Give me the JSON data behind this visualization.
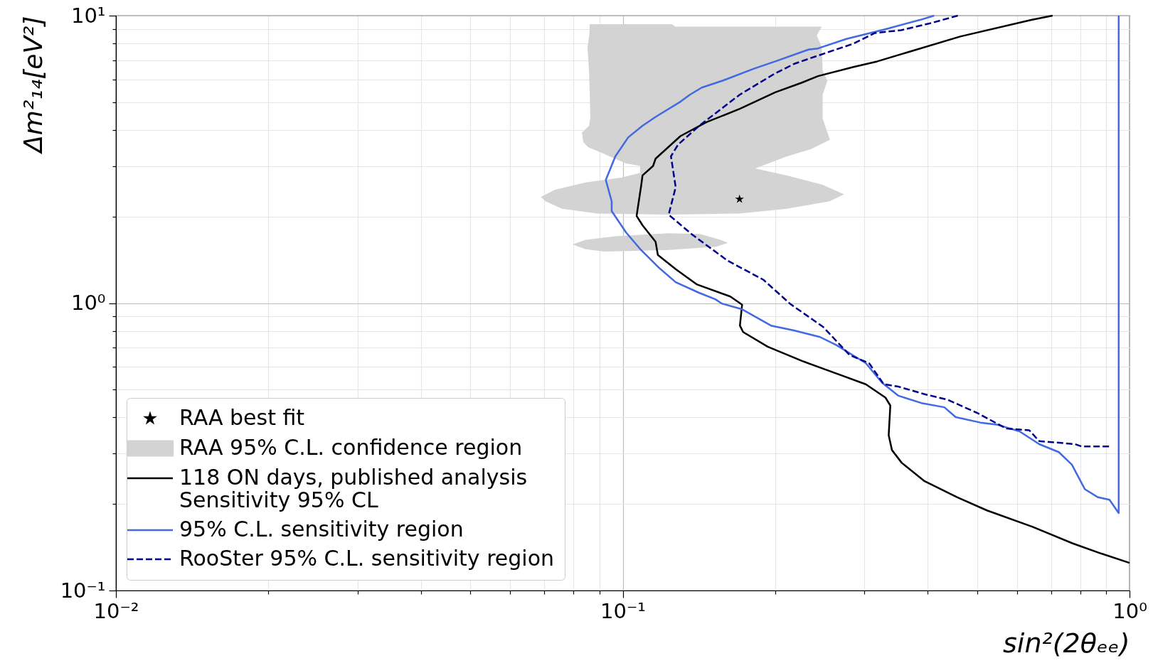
{
  "chart_data": {
    "type": "line",
    "xlabel": "sin²(2θₑₑ)",
    "ylabel": "Δm²₁₄[eV²]",
    "log": "xy",
    "grid": true,
    "legend": "bottom left",
    "xlim": [
      0.01,
      1
    ],
    "ylim": [
      0.1,
      10
    ],
    "xticks": [
      {
        "value": 0.01,
        "label": "10⁻²"
      },
      {
        "value": 0.02,
        "label": null
      },
      {
        "value": 0.03,
        "label": null
      },
      {
        "value": 0.04,
        "label": null
      },
      {
        "value": 0.05,
        "label": null
      },
      {
        "value": 0.06,
        "label": null
      },
      {
        "value": 0.07,
        "label": null
      },
      {
        "value": 0.08,
        "label": null
      },
      {
        "value": 0.09,
        "label": null
      },
      {
        "value": 0.1,
        "label": "10⁻¹"
      },
      {
        "value": 0.2,
        "label": null
      },
      {
        "value": 0.3,
        "label": null
      },
      {
        "value": 0.4,
        "label": null
      },
      {
        "value": 0.5,
        "label": null
      },
      {
        "value": 0.6,
        "label": null
      },
      {
        "value": 0.7,
        "label": null
      },
      {
        "value": 0.8,
        "label": null
      },
      {
        "value": 0.9,
        "label": null
      },
      {
        "value": 1,
        "label": "10⁰"
      }
    ],
    "yticks": [
      {
        "value": 0.1,
        "label": "10⁻¹"
      },
      {
        "value": 0.2,
        "label": null
      },
      {
        "value": 0.3,
        "label": null
      },
      {
        "value": 0.4,
        "label": null
      },
      {
        "value": 0.5,
        "label": null
      },
      {
        "value": 0.6,
        "label": null
      },
      {
        "value": 0.7,
        "label": null
      },
      {
        "value": 0.8,
        "label": null
      },
      {
        "value": 0.9,
        "label": null
      },
      {
        "value": 1,
        "label": "10⁰"
      },
      {
        "value": 2,
        "label": null
      },
      {
        "value": 3,
        "label": null
      },
      {
        "value": 4,
        "label": null
      },
      {
        "value": 5,
        "label": null
      },
      {
        "value": 6,
        "label": null
      },
      {
        "value": 7,
        "label": null
      },
      {
        "value": 8,
        "label": null
      },
      {
        "value": 9,
        "label": null
      },
      {
        "value": 10,
        "label": "10¹"
      }
    ],
    "series": [
      {
        "name": "RAA best fit",
        "type": "scatter",
        "marker": "star",
        "color": "#000000",
        "x": [
          0.17
        ],
        "values": [
          2.3
        ]
      },
      {
        "name": "RAA 95% C.L. confidence region",
        "type": "area",
        "color": "#d3d3d3",
        "x": [
          0.0861,
          0.125,
          0.127,
          0.247,
          0.2415,
          0.247,
          0.248,
          0.2535,
          0.248,
          0.248,
          0.2563,
          0.235,
          0.211,
          0.1825,
          0.211,
          0.248,
          0.2733,
          0.256,
          0.211,
          0.17,
          0.1232,
          0.0892,
          0.0759,
          0.0704,
          0.0689,
          0.0735,
          0.0845,
          0.0993,
          0.1082,
          0.1082,
          0.1015,
          0.0941,
          0.0921,
          0.0854,
          0.0836,
          0.0831,
          0.0858,
          0.0863,
          0.0861,
          0.0858,
          0.0852,
          0.0859,
          null,
          0.0796,
          0.0845,
          0.0972,
          0.1232,
          0.142,
          0.156,
          0.1612,
          0.1528,
          0.1232,
          0.0921,
          0.0845
        ],
        "values": [
          9.34,
          9.34,
          9.16,
          9.16,
          8.54,
          7.76,
          6.42,
          5.95,
          5.31,
          4.39,
          3.7,
          3.43,
          3.24,
          2.94,
          2.78,
          2.58,
          2.39,
          2.26,
          2.13,
          2.05,
          2.03,
          2.05,
          2.13,
          2.26,
          2.34,
          2.48,
          2.63,
          2.73,
          2.84,
          3.0,
          3.06,
          3.24,
          3.3,
          3.49,
          3.63,
          3.92,
          4.14,
          4.39,
          5.31,
          6.42,
          7.76,
          8.54,
          null,
          1.6,
          1.66,
          1.71,
          1.75,
          1.74,
          1.66,
          1.62,
          1.57,
          1.53,
          1.51,
          1.54
        ]
      },
      {
        "name": "118 ON days, published analysis\n Sensitivity 95% CL",
        "type": "line",
        "color": "#000000",
        "x": [
          0.705,
          0.64,
          0.4634,
          0.3178,
          0.2853,
          0.2428,
          0.2253,
          0.2,
          0.1702,
          0.1463,
          0.13,
          0.1161,
          0.1148,
          0.1094,
          0.1088,
          0.1065,
          0.1094,
          0.1161,
          0.1173,
          0.1272,
          0.1402,
          0.163,
          0.172,
          0.1703,
          0.1728,
          0.1932,
          0.2275,
          0.264,
          0.3017,
          0.3299,
          0.3373,
          0.3348,
          0.3398,
          0.3553,
          0.3942,
          0.4574,
          0.5231,
          0.6437,
          0.7696,
          0.88,
          1.0
        ],
        "values": [
          10,
          9.66,
          8.46,
          6.93,
          6.63,
          6.16,
          5.84,
          5.41,
          4.74,
          4.26,
          3.81,
          3.18,
          3.0,
          2.78,
          2.58,
          2.01,
          1.865,
          1.633,
          1.471,
          1.313,
          1.16,
          1.054,
          0.987,
          0.835,
          0.793,
          0.705,
          0.626,
          0.569,
          0.522,
          0.469,
          0.44,
          0.347,
          0.308,
          0.278,
          0.24,
          0.211,
          0.19,
          0.1666,
          0.1462,
          0.1344,
          0.1248
        ]
      },
      {
        "name": "95% C.L. sensitivity region",
        "type": "line",
        "color": "#4169e1",
        "x": [
          0.4116,
          0.3858,
          0.3283,
          0.2764,
          0.2428,
          0.2326,
          0.2,
          0.1815,
          0.1578,
          0.1432,
          0.1357,
          0.13,
          0.1167,
          0.1094,
          0.1025,
          0.0967,
          0.0926,
          0.0951,
          0.0951,
          0.1015,
          0.1082,
          0.118,
          0.1272,
          0.1414,
          0.1523,
          0.1569,
          0.1716,
          0.1961,
          0.2177,
          0.245,
          0.264,
          0.3017,
          0.325,
          0.35,
          0.3884,
          0.4311,
          0.454,
          0.5077,
          0.5466,
          0.6066,
          0.6633,
          0.7252,
          0.7696,
          0.8166,
          0.8666,
          0.9129,
          0.952,
          0.952
        ],
        "values": [
          10,
          9.66,
          8.95,
          8.3,
          7.69,
          7.62,
          6.93,
          6.54,
          5.95,
          5.62,
          5.31,
          5.02,
          4.47,
          4.14,
          3.77,
          3.24,
          2.68,
          2.26,
          2.09,
          1.762,
          1.543,
          1.325,
          1.182,
          1.086,
          1.031,
          0.996,
          0.953,
          0.835,
          0.803,
          0.762,
          0.714,
          0.618,
          0.528,
          0.476,
          0.449,
          0.434,
          0.401,
          0.384,
          0.378,
          0.358,
          0.323,
          0.303,
          0.274,
          0.225,
          0.211,
          0.207,
          0.186,
          10
        ]
      },
      {
        "name": "RooSter 95% C.L. sensitivity region",
        "type": "line",
        "line_style": "dashed",
        "color": "#00008b",
        "x": [
          0.4584,
          0.4029,
          0.354,
          0.3144,
          0.2853,
          0.2428,
          0.2181,
          0.2,
          0.1702,
          0.1416,
          0.1286,
          0.1245,
          0.1272,
          0.1232,
          0.1372,
          0.1612,
          0.1895,
          0.2144,
          0.2488,
          0.2802,
          0.3062,
          0.3274,
          0.35,
          0.3942,
          0.4375,
          0.5002,
          0.5715,
          0.6342,
          0.6633,
          0.781,
          0.8044,
          0.92
        ],
        "values": [
          10,
          9.39,
          8.9,
          8.7,
          7.99,
          7.26,
          6.8,
          6.3,
          5.31,
          4.14,
          3.56,
          3.24,
          2.53,
          2.03,
          1.729,
          1.403,
          1.205,
          0.991,
          0.825,
          0.66,
          0.618,
          0.522,
          0.512,
          0.482,
          0.461,
          0.415,
          0.366,
          0.361,
          0.331,
          0.323,
          0.317,
          0.317
        ]
      }
    ]
  }
}
